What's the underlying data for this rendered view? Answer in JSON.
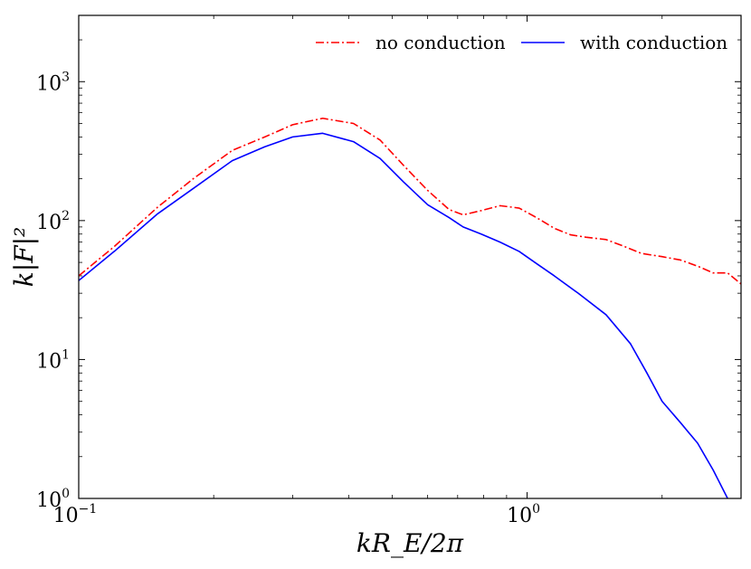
{
  "chart_data": {
    "type": "line",
    "title": "",
    "xlabel": "kR_E/2π",
    "ylabel": "k|F|²",
    "xscale": "log",
    "yscale": "log",
    "xlim": [
      0.1,
      3.0
    ],
    "ylim": [
      1,
      3000
    ],
    "x_ticks": [
      {
        "value": 0.1,
        "base": "10",
        "exp": "−1"
      },
      {
        "value": 1.0,
        "base": "10",
        "exp": "0"
      }
    ],
    "y_ticks": [
      {
        "value": 1,
        "base": "10",
        "exp": "0"
      },
      {
        "value": 10,
        "base": "10",
        "exp": "1"
      },
      {
        "value": 100,
        "base": "10",
        "exp": "2"
      },
      {
        "value": 1000,
        "base": "10",
        "exp": "3"
      }
    ],
    "legend_position": "top-right",
    "series": [
      {
        "name": "no conduction",
        "color": "#ff0000",
        "style": "dashdot",
        "x": [
          0.1,
          0.12,
          0.15,
          0.18,
          0.22,
          0.26,
          0.3,
          0.35,
          0.41,
          0.47,
          0.53,
          0.6,
          0.67,
          0.72,
          0.79,
          0.87,
          0.96,
          1.05,
          1.15,
          1.25,
          1.35,
          1.5,
          1.65,
          1.8,
          2.0,
          2.2,
          2.4,
          2.6,
          2.8,
          3.0
        ],
        "y": [
          40,
          65,
          125,
          200,
          320,
          400,
          490,
          545,
          500,
          380,
          250,
          165,
          120,
          110,
          118,
          128,
          123,
          105,
          88,
          79,
          76,
          73,
          65,
          58,
          55,
          52,
          47,
          42,
          42,
          35
        ]
      },
      {
        "name": "with conduction",
        "color": "#0000ff",
        "style": "solid",
        "x": [
          0.1,
          0.12,
          0.15,
          0.18,
          0.22,
          0.26,
          0.3,
          0.35,
          0.41,
          0.47,
          0.53,
          0.6,
          0.67,
          0.72,
          0.79,
          0.87,
          0.96,
          1.05,
          1.15,
          1.3,
          1.5,
          1.7,
          1.85,
          2.0,
          2.2,
          2.4,
          2.6,
          2.8
        ],
        "y": [
          37,
          60,
          112,
          170,
          270,
          340,
          400,
          425,
          370,
          280,
          190,
          130,
          105,
          90,
          80,
          70,
          60,
          49,
          40,
          30,
          21,
          13,
          8,
          5,
          3.5,
          2.5,
          1.6,
          1.0
        ]
      }
    ]
  }
}
